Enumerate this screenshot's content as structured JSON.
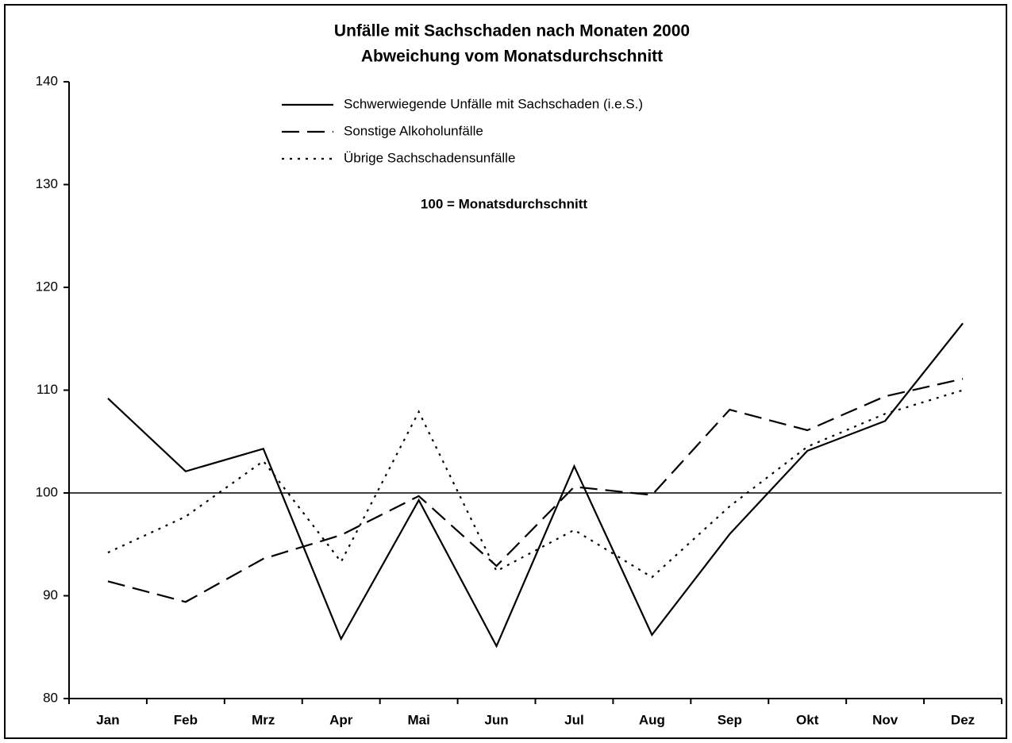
{
  "chart_data": {
    "type": "line",
    "title": "Unfälle mit Sachschaden nach Monaten 2000",
    "subtitle": "Abweichung vom Monatsdurchschnitt",
    "annotation": "100 = Monatsdurchschnitt",
    "reference_line": 100,
    "categories": [
      "Jan",
      "Feb",
      "Mrz",
      "Apr",
      "Mai",
      "Jun",
      "Jul",
      "Aug",
      "Sep",
      "Okt",
      "Nov",
      "Dez"
    ],
    "series": [
      {
        "name": "Schwerwiegende Unfälle mit Sachschaden (i.e.S.)",
        "color": "#000000",
        "style": "solid",
        "values": [
          109.2,
          102.1,
          104.3,
          85.8,
          99.3,
          85.1,
          102.6,
          86.2,
          96.0,
          104.1,
          107.0,
          116.5
        ]
      },
      {
        "name": "Sonstige Alkoholunfälle",
        "color": "#000000",
        "style": "dashed",
        "values": [
          91.4,
          89.4,
          93.6,
          95.9,
          99.7,
          92.9,
          100.6,
          99.8,
          108.1,
          106.1,
          109.4,
          111.1
        ]
      },
      {
        "name": "Übrige Sachschadensunfälle",
        "color": "#000000",
        "style": "dotted",
        "values": [
          94.2,
          97.7,
          103.1,
          93.3,
          107.9,
          92.4,
          96.4,
          91.8,
          98.7,
          104.5,
          107.7,
          110.0
        ]
      }
    ],
    "ylim": [
      80,
      140
    ],
    "yticks": [
      80,
      90,
      100,
      110,
      120,
      130,
      140
    ]
  }
}
